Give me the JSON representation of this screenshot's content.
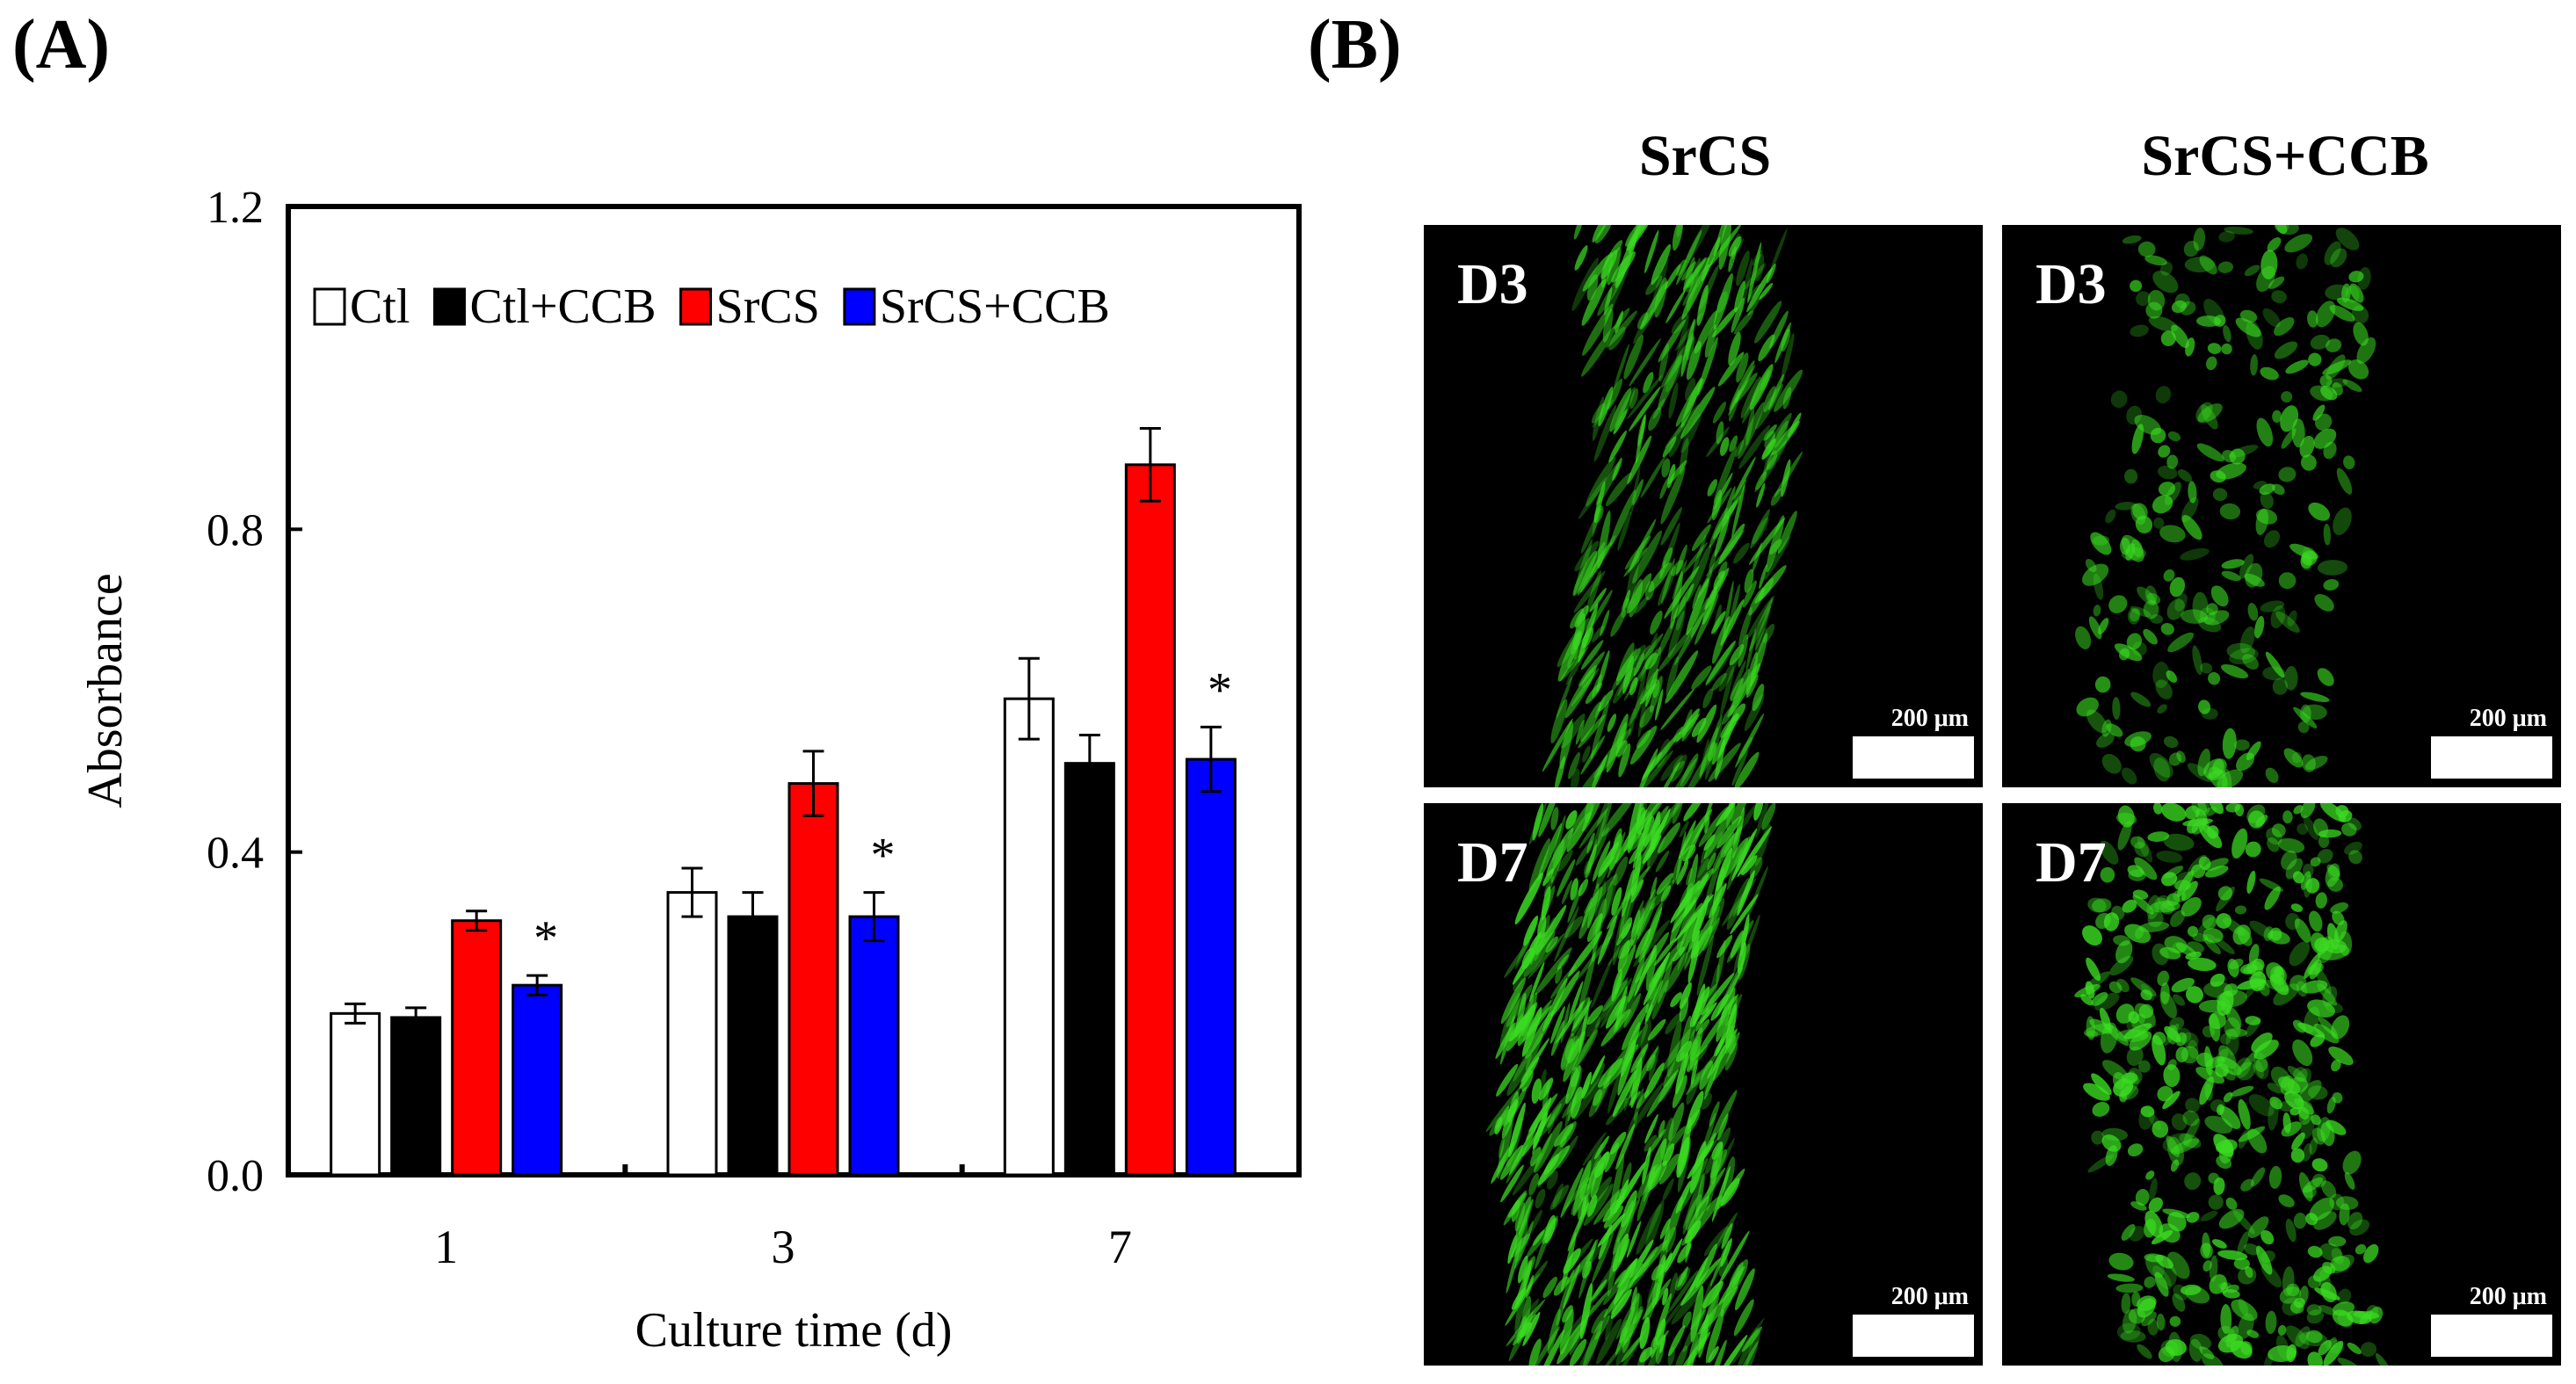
{
  "figure": {
    "panel_a_label": "(A)",
    "panel_b_label": "(B)"
  },
  "chart_data": {
    "type": "bar",
    "categories": [
      "1",
      "3",
      "7"
    ],
    "series": [
      {
        "name": "Ctl",
        "color": "#ffffff",
        "values": [
          0.2,
          0.35,
          0.59
        ],
        "errors": [
          0.012,
          0.03,
          0.05
        ]
      },
      {
        "name": "Ctl+CCB",
        "color": "#000000",
        "values": [
          0.195,
          0.32,
          0.51
        ],
        "errors": [
          0.012,
          0.03,
          0.035
        ]
      },
      {
        "name": "SrCS",
        "color": "#ff0000",
        "values": [
          0.315,
          0.485,
          0.88
        ],
        "errors": [
          0.012,
          0.04,
          0.045
        ]
      },
      {
        "name": "SrCS+CCB",
        "color": "#0000ff",
        "values": [
          0.235,
          0.32,
          0.515
        ],
        "errors": [
          0.012,
          0.03,
          0.04
        ]
      }
    ],
    "significance": [
      "*",
      "*",
      "*"
    ],
    "xlabel": "Culture time (d)",
    "ylabel": "Absorbance",
    "ylim": [
      0.0,
      1.2
    ],
    "yticks": [
      "0.0",
      "0.4",
      "0.8",
      "1.2"
    ],
    "grid": false,
    "legend_position": "top-left, inside"
  },
  "micrographs": {
    "columns": [
      "SrCS",
      "SrCS+CCB"
    ],
    "panels": [
      {
        "day": "D3",
        "scale": "200 μm"
      },
      {
        "day": "D3",
        "scale": "200 μm"
      },
      {
        "day": "D7",
        "scale": "200 μm"
      },
      {
        "day": "D7",
        "scale": "200 μm"
      }
    ],
    "stain_color": "#3bdc22"
  }
}
